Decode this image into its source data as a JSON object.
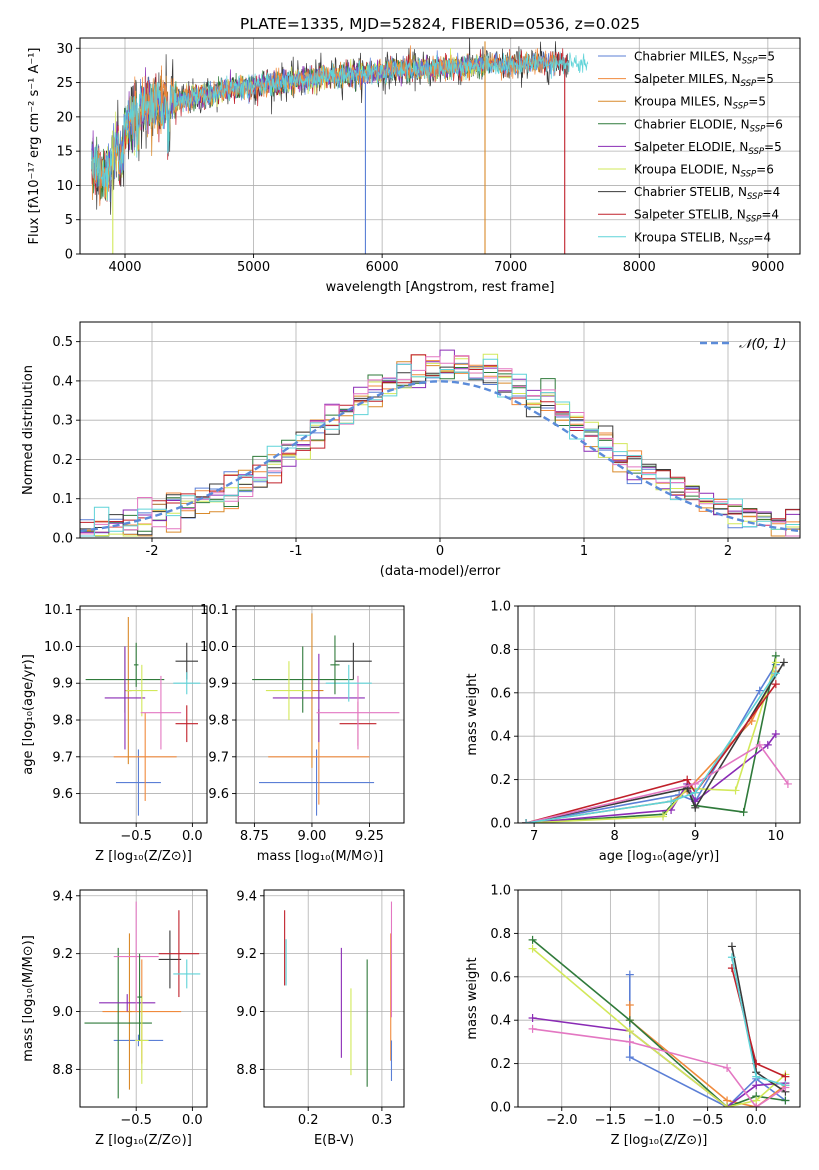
{
  "colors": {
    "Chabrier MILES": "#5b7fd6",
    "Salpeter MILES": "#f08a3c",
    "Kroupa MILES": "#d98a2b",
    "Chabrier ELODIE": "#2f7a3a",
    "Salpeter ELODIE": "#8a2bb5",
    "Kroupa ELODIE": "#d2e85a",
    "Chabrier STELIB": "#3a3a3a",
    "Salpeter STELIB": "#c0202a",
    "Kroupa STELIB": "#5fd3d8",
    "pink": "#e377c2",
    "normal": "#5b8bd9",
    "grid": "#b0b0b0"
  },
  "chart_data": [
    {
      "id": "spectrum",
      "type": "line",
      "title": "PLATE=1335, MJD=52824, FIBERID=0536, z=0.025",
      "xlabel": "wavelength [Angstrom, rest frame]",
      "ylabel": "Flux [fλ10⁻¹⁷ erg cm⁻² s⁻¹ A⁻¹]",
      "xlim": [
        3650,
        9250
      ],
      "ylim": [
        0,
        31.5
      ],
      "xticks": [
        4000,
        5000,
        6000,
        7000,
        8000,
        9000
      ],
      "yticks": [
        0,
        5,
        10,
        15,
        20,
        25,
        30
      ],
      "grid": true,
      "legend_loc": "right",
      "legend": [
        {
          "name": "Chabrier MILES",
          "label": "Chabrier MILES, N",
          "sub": "SSP",
          "n": "=5"
        },
        {
          "name": "Salpeter MILES",
          "label": "Salpeter MILES, N",
          "sub": "SSP",
          "n": "=5"
        },
        {
          "name": "Kroupa MILES",
          "label": "Kroupa MILES, N",
          "sub": "SSP",
          "n": "=5"
        },
        {
          "name": "Chabrier ELODIE",
          "label": "Chabrier ELODIE, N",
          "sub": "SSP",
          "n": "=6"
        },
        {
          "name": "Salpeter ELODIE",
          "label": "Salpeter ELODIE, N",
          "sub": "SSP",
          "n": "=5"
        },
        {
          "name": "Kroupa ELODIE",
          "label": "Kroupa ELODIE, N",
          "sub": "SSP",
          "n": "=6"
        },
        {
          "name": "Chabrier STELIB",
          "label": "Chabrier STELIB, N",
          "sub": "SSP",
          "n": "=4"
        },
        {
          "name": "Salpeter STELIB",
          "label": "Salpeter STELIB, N",
          "sub": "SSP",
          "n": "=4"
        },
        {
          "name": "Kroupa STELIB",
          "label": "Kroupa STELIB, N",
          "sub": "SSP",
          "n": "=4"
        }
      ],
      "continuum": {
        "x": [
          3750,
          3800,
          3850,
          3900,
          3950,
          4000,
          4100,
          4200,
          4300,
          4400,
          4600,
          4800,
          5000,
          5200,
          5400,
          5600,
          5800,
          6000,
          6200,
          6400,
          6600,
          6800,
          7000,
          7200,
          7400,
          7600
        ],
        "y": [
          13,
          12,
          11,
          14,
          17,
          19,
          21,
          21.5,
          21.8,
          22.5,
          23,
          24,
          24.5,
          25,
          25.5,
          26,
          26.3,
          26.6,
          27,
          27,
          27.3,
          27.6,
          27.5,
          27.8,
          28,
          27.5
        ]
      },
      "spikes": [
        {
          "x": 3905,
          "ymin": 0,
          "ymax": 18
        },
        {
          "x": 5870,
          "ymin": 0,
          "ymax": 25
        },
        {
          "x": 6800,
          "ymin": 0,
          "ymax": 31
        },
        {
          "x": 7420,
          "ymin": 0,
          "ymax": 27
        }
      ]
    },
    {
      "id": "hist",
      "type": "step",
      "xlabel": "(data-model)/error",
      "ylabel": "Normed distribution",
      "xlim": [
        -2.5,
        2.5
      ],
      "ylim": [
        0,
        0.55
      ],
      "xticks": [
        -2,
        -1,
        0,
        1,
        2
      ],
      "yticks": [
        0.0,
        0.1,
        0.2,
        0.3,
        0.4,
        0.5
      ],
      "grid": true,
      "legend_loc": "upper right",
      "legend_label": "𝒩(0, 1)",
      "bin_width": 0.1,
      "normal": {
        "mu": 0,
        "sigma": 1
      }
    },
    {
      "id": "age_vs_Z",
      "type": "errorbar",
      "xlabel": "Z [log₁₀(Z/Z⊙)]",
      "ylabel": "age  [log₁₀(age/yr)]",
      "xlim": [
        -1.0,
        0.13
      ],
      "ylim": [
        9.52,
        10.11
      ],
      "xticks": [
        -0.5,
        0.0
      ],
      "xticklabels": [
        "−0.5",
        "0.0"
      ],
      "yticks": [
        9.6,
        9.7,
        9.8,
        9.9,
        10.0,
        10.1
      ],
      "grid": true,
      "points": [
        {
          "c": "Chabrier MILES",
          "x": -0.48,
          "y": 9.63,
          "xerr": 0.2,
          "yerr": 0.09
        },
        {
          "c": "Salpeter MILES",
          "x": -0.42,
          "y": 9.7,
          "xerr": 0.28,
          "yerr": 0.12
        },
        {
          "c": "Kroupa MILES",
          "x": -0.57,
          "y": 9.88,
          "xerr": 0.03,
          "yerr": 0.2
        },
        {
          "c": "Chabrier ELODIE",
          "x": -0.6,
          "y": 9.91,
          "xerr": 0.35,
          "yerr": 0.09
        },
        {
          "c": "Salpeter ELODIE",
          "x": -0.6,
          "y": 9.86,
          "xerr": 0.18,
          "yerr": 0.14
        },
        {
          "c": "Kroupa ELODIE",
          "x": -0.45,
          "y": 9.88,
          "xerr": 0.14,
          "yerr": 0.07
        },
        {
          "c": "Chabrier STELIB",
          "x": -0.05,
          "y": 9.96,
          "xerr": 0.1,
          "yerr": 0.05
        },
        {
          "c": "Salpeter STELIB",
          "x": -0.05,
          "y": 9.79,
          "xerr": 0.1,
          "yerr": 0.05
        },
        {
          "c": "pink",
          "x": -0.28,
          "y": 9.82,
          "xerr": 0.18,
          "yerr": 0.1
        },
        {
          "c": "Kroupa STELIB",
          "x": -0.05,
          "y": 9.9,
          "xerr": 0.12,
          "yerr": 0.03
        },
        {
          "c": "Chabrier ELODIE",
          "x": -0.5,
          "y": 9.95,
          "xerr": 0.02,
          "yerr": 0.06
        }
      ]
    },
    {
      "id": "age_vs_mass",
      "type": "errorbar",
      "xlabel": "mass [log₁₀(M/M⊙)]",
      "ylabel": "",
      "xlim": [
        8.67,
        9.4
      ],
      "ylim": [
        9.52,
        10.11
      ],
      "xticks": [
        8.75,
        9.0,
        9.25
      ],
      "xticklabels": [
        "8.75",
        "9.00",
        "9.25"
      ],
      "yticks": [
        9.6,
        9.7,
        9.8,
        9.9,
        10.0,
        10.1
      ],
      "grid": true,
      "points": [
        {
          "c": "Chabrier MILES",
          "x": 9.02,
          "y": 9.63,
          "xerr": 0.25,
          "yerr": 0.09
        },
        {
          "c": "Salpeter MILES",
          "x": 9.03,
          "y": 9.7,
          "xerr": 0.22,
          "yerr": 0.13
        },
        {
          "c": "Kroupa MILES",
          "x": 9.0,
          "y": 9.88,
          "xerr": 0.05,
          "yerr": 0.21
        },
        {
          "c": "Chabrier ELODIE",
          "x": 8.96,
          "y": 9.91,
          "xerr": 0.22,
          "yerr": 0.09
        },
        {
          "c": "Salpeter ELODIE",
          "x": 9.03,
          "y": 9.86,
          "xerr": 0.2,
          "yerr": 0.12
        },
        {
          "c": "Kroupa ELODIE",
          "x": 8.9,
          "y": 9.88,
          "xerr": 0.1,
          "yerr": 0.08
        },
        {
          "c": "Chabrier STELIB",
          "x": 9.18,
          "y": 9.96,
          "xerr": 0.08,
          "yerr": 0.05
        },
        {
          "c": "Salpeter STELIB",
          "x": 9.2,
          "y": 9.79,
          "xerr": 0.08,
          "yerr": 0.06
        },
        {
          "c": "pink",
          "x": 9.2,
          "y": 9.82,
          "xerr": 0.18,
          "yerr": 0.1
        },
        {
          "c": "Kroupa STELIB",
          "x": 9.16,
          "y": 9.9,
          "xerr": 0.1,
          "yerr": 0.05
        },
        {
          "c": "Chabrier ELODIE",
          "x": 9.1,
          "y": 9.95,
          "xerr": 0.02,
          "yerr": 0.08
        }
      ]
    },
    {
      "id": "mw_vs_age",
      "type": "line",
      "xlabel": "age  [log₁₀(age/yr)]",
      "ylabel": "mass weight",
      "xlim": [
        6.8,
        10.3
      ],
      "ylim": [
        0,
        1.0
      ],
      "xticks": [
        7,
        8,
        9,
        10
      ],
      "yticks": [
        0.0,
        0.2,
        0.4,
        0.6,
        0.8,
        1.0
      ],
      "grid": true,
      "series": [
        {
          "c": "Chabrier MILES",
          "x": [
            6.9,
            8.8,
            9.0,
            9.8,
            10.0
          ],
          "y": [
            0.0,
            0.13,
            0.1,
            0.61,
            0.73
          ]
        },
        {
          "c": "Salpeter MILES",
          "x": [
            6.9,
            8.7,
            8.9,
            9.7,
            10.0
          ],
          "y": [
            0.0,
            0.1,
            0.15,
            0.47,
            0.7
          ]
        },
        {
          "c": "Chabrier ELODIE",
          "x": [
            6.9,
            8.6,
            8.9,
            9.0,
            9.6,
            10.0
          ],
          "y": [
            0.0,
            0.04,
            0.16,
            0.08,
            0.05,
            0.77
          ]
        },
        {
          "c": "Salpeter ELODIE",
          "x": [
            6.9,
            8.7,
            8.9,
            9.0,
            9.9,
            10.0
          ],
          "y": [
            0.0,
            0.06,
            0.18,
            0.1,
            0.36,
            0.41
          ]
        },
        {
          "c": "Kroupa ELODIE",
          "x": [
            6.9,
            8.6,
            8.9,
            9.5,
            10.0
          ],
          "y": [
            0.0,
            0.03,
            0.16,
            0.15,
            0.74
          ]
        },
        {
          "c": "Chabrier STELIB",
          "x": [
            6.9,
            8.9,
            9.0,
            10.1
          ],
          "y": [
            0.0,
            0.16,
            0.07,
            0.74
          ]
        },
        {
          "c": "Salpeter STELIB",
          "x": [
            6.9,
            8.9,
            9.0,
            10.0
          ],
          "y": [
            0.0,
            0.2,
            0.14,
            0.64
          ]
        },
        {
          "c": "pink",
          "x": [
            6.9,
            9.0,
            9.8,
            10.15
          ],
          "y": [
            0.0,
            0.18,
            0.36,
            0.18
          ]
        },
        {
          "c": "Kroupa STELIB",
          "x": [
            6.9,
            8.7,
            9.0,
            10.0
          ],
          "y": [
            0.0,
            0.1,
            0.14,
            0.69
          ]
        }
      ]
    },
    {
      "id": "mass_vs_Z",
      "type": "errorbar",
      "xlabel": "Z [log₁₀(Z/Z⊙)]",
      "ylabel": "mass [log₁₀(M/M⊙)]",
      "xlim": [
        -1.0,
        0.13
      ],
      "ylim": [
        8.67,
        9.42
      ],
      "xticks": [
        -0.5,
        0.0
      ],
      "xticklabels": [
        "−0.5",
        "0.0"
      ],
      "yticks": [
        8.8,
        9.0,
        9.2,
        9.4
      ],
      "grid": true,
      "points": [
        {
          "c": "Chabrier MILES",
          "x": -0.48,
          "y": 8.9,
          "xerr": 0.22,
          "yerr": 0.02
        },
        {
          "c": "Salpeter MILES",
          "x": -0.45,
          "y": 9.0,
          "xerr": 0.35,
          "yerr": 0.18
        },
        {
          "c": "Kroupa MILES",
          "x": -0.56,
          "y": 9.0,
          "xerr": 0.02,
          "yerr": 0.27
        },
        {
          "c": "Chabrier ELODIE",
          "x": -0.66,
          "y": 8.96,
          "xerr": 0.3,
          "yerr": 0.26
        },
        {
          "c": "Salpeter ELODIE",
          "x": -0.58,
          "y": 9.03,
          "xerr": 0.25,
          "yerr": 0.03
        },
        {
          "c": "Kroupa ELODIE",
          "x": -0.45,
          "y": 8.9,
          "xerr": 0.06,
          "yerr": 0.15
        },
        {
          "c": "Chabrier STELIB",
          "x": -0.2,
          "y": 9.18,
          "xerr": 0.1,
          "yerr": 0.1
        },
        {
          "c": "Salpeter STELIB",
          "x": -0.12,
          "y": 9.2,
          "xerr": 0.18,
          "yerr": 0.15
        },
        {
          "c": "pink",
          "x": -0.5,
          "y": 9.19,
          "xerr": 0.2,
          "yerr": 0.19
        },
        {
          "c": "Kroupa STELIB",
          "x": -0.05,
          "y": 9.13,
          "xerr": 0.12,
          "yerr": 0.05
        },
        {
          "c": "Chabrier ELODIE",
          "x": -0.47,
          "y": 9.05,
          "xerr": 0.02,
          "yerr": 0.15
        }
      ]
    },
    {
      "id": "mass_vs_ebv",
      "type": "errorbar",
      "xlabel": "E(B-V)",
      "ylabel": "",
      "xlim": [
        0.14,
        0.33
      ],
      "ylim": [
        8.67,
        9.42
      ],
      "xticks": [
        0.2,
        0.3
      ],
      "xticklabels": [
        "0.2",
        "0.3"
      ],
      "yticks": [
        8.8,
        9.0,
        9.2,
        9.4
      ],
      "grid": true,
      "points": [
        {
          "c": "Salpeter STELIB",
          "x": 0.168,
          "y": 9.22,
          "xerr": 0,
          "yerr": 0.13
        },
        {
          "c": "Kroupa STELIB",
          "x": 0.17,
          "y": 9.17,
          "xerr": 0,
          "yerr": 0.08
        },
        {
          "c": "Salpeter ELODIE",
          "x": 0.245,
          "y": 9.03,
          "xerr": 0,
          "yerr": 0.19
        },
        {
          "c": "Kroupa ELODIE",
          "x": 0.258,
          "y": 8.93,
          "xerr": 0,
          "yerr": 0.15
        },
        {
          "c": "Chabrier ELODIE",
          "x": 0.28,
          "y": 8.96,
          "xerr": 0,
          "yerr": 0.22
        },
        {
          "c": "Salpeter MILES",
          "x": 0.312,
          "y": 9.05,
          "xerr": 0,
          "yerr": 0.22
        },
        {
          "c": "pink",
          "x": 0.313,
          "y": 9.18,
          "xerr": 0,
          "yerr": 0.2
        },
        {
          "c": "Chabrier MILES",
          "x": 0.313,
          "y": 8.83,
          "xerr": 0,
          "yerr": 0.07
        }
      ]
    },
    {
      "id": "mw_vs_Z",
      "type": "line",
      "xlabel": "Z [log₁₀(Z/Z⊙)]",
      "ylabel": "mass weight",
      "xlim": [
        -2.45,
        0.45
      ],
      "ylim": [
        0,
        1.0
      ],
      "xticks": [
        -2.0,
        -1.5,
        -1.0,
        -0.5,
        0.0
      ],
      "xticklabels": [
        "−2.0",
        "−1.5",
        "−1.0",
        "−0.5",
        "0.0"
      ],
      "yticks": [
        0.0,
        0.2,
        0.4,
        0.6,
        0.8,
        1.0
      ],
      "grid": true,
      "series": [
        {
          "c": "Chabrier MILES",
          "x": [
            -1.3,
            -1.3,
            -0.3,
            0.0,
            0.3
          ],
          "y": [
            0.61,
            0.23,
            0.0,
            0.13,
            0.03
          ]
        },
        {
          "c": "Salpeter MILES",
          "x": [
            -1.3,
            -1.3,
            -0.3,
            0.0,
            0.3
          ],
          "y": [
            0.47,
            0.4,
            0.03,
            0.0,
            0.1
          ]
        },
        {
          "c": "Chabrier ELODIE",
          "x": [
            -2.3,
            -1.3,
            -0.3,
            0.0,
            0.3
          ],
          "y": [
            0.77,
            0.4,
            0.0,
            0.05,
            0.03
          ]
        },
        {
          "c": "Salpeter ELODIE",
          "x": [
            -2.3,
            -1.3,
            -0.3,
            0.0,
            0.3
          ],
          "y": [
            0.41,
            0.35,
            0.0,
            0.1,
            0.11
          ]
        },
        {
          "c": "Kroupa ELODIE",
          "x": [
            -2.3,
            -1.3,
            -0.3,
            0.0,
            0.3
          ],
          "y": [
            0.73,
            0.35,
            0.0,
            0.03,
            0.15
          ]
        },
        {
          "c": "Chabrier STELIB",
          "x": [
            -0.25,
            0.0,
            0.3
          ],
          "y": [
            0.74,
            0.16,
            0.07
          ]
        },
        {
          "c": "Salpeter STELIB",
          "x": [
            -0.25,
            0.0,
            0.3
          ],
          "y": [
            0.64,
            0.2,
            0.14
          ]
        },
        {
          "c": "Kroupa STELIB",
          "x": [
            -0.25,
            0.0,
            0.3
          ],
          "y": [
            0.69,
            0.14,
            0.1
          ]
        },
        {
          "c": "pink",
          "x": [
            -2.3,
            -1.3,
            -0.3,
            0.0,
            0.3
          ],
          "y": [
            0.36,
            0.3,
            0.18,
            0.0,
            0.09
          ]
        }
      ]
    }
  ]
}
